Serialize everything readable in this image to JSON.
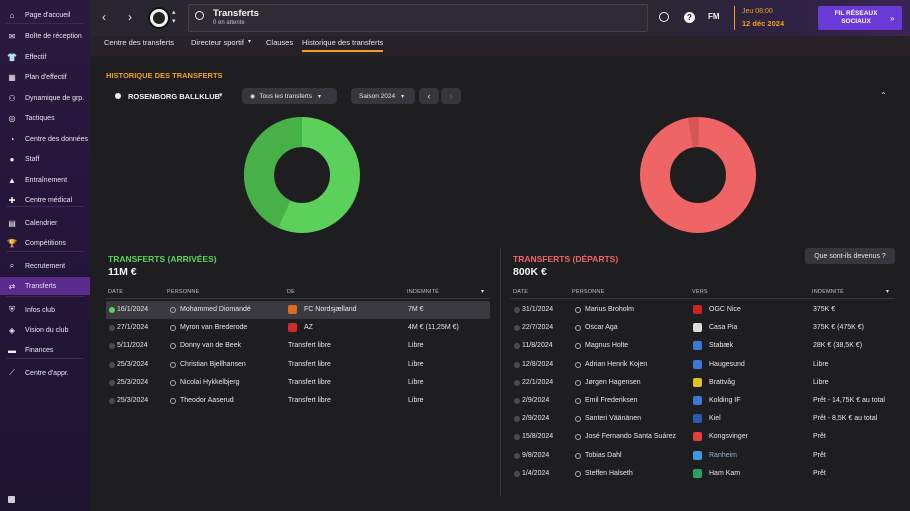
{
  "sidebar": {
    "items": [
      {
        "label": "Page d'accueil",
        "icon": "home-icon",
        "glyph": "⌂"
      },
      {
        "label": "Boîte de réception",
        "icon": "inbox-icon",
        "glyph": "✉"
      },
      {
        "label": "Effectif",
        "icon": "shirt-icon",
        "glyph": "👕"
      },
      {
        "label": "Plan d'effectif",
        "icon": "squad-plan-icon",
        "glyph": "▦"
      },
      {
        "label": "Dynamique de grp.",
        "icon": "dynamics-icon",
        "glyph": "⚇"
      },
      {
        "label": "Tactiques",
        "icon": "tactics-icon",
        "glyph": "◎"
      },
      {
        "label": "Centre des données",
        "icon": "data-icon",
        "glyph": "◔"
      },
      {
        "label": "Staff",
        "icon": "staff-icon",
        "glyph": "●"
      },
      {
        "label": "Entraînement",
        "icon": "training-icon",
        "glyph": "▲"
      },
      {
        "label": "Centre médical",
        "icon": "medical-icon",
        "glyph": "✚"
      },
      {
        "label": "Calendrier",
        "icon": "calendar-icon",
        "glyph": "▤"
      },
      {
        "label": "Compétitions",
        "icon": "trophy-icon",
        "glyph": "🏆"
      },
      {
        "label": "Recrutement",
        "icon": "scouting-icon",
        "glyph": "⌕"
      },
      {
        "label": "Transferts",
        "icon": "transfers-icon",
        "glyph": "⇄"
      },
      {
        "label": "Infos club",
        "icon": "club-info-icon",
        "glyph": "⛨"
      },
      {
        "label": "Vision du club",
        "icon": "club-vision-icon",
        "glyph": "◈"
      },
      {
        "label": "Finances",
        "icon": "finances-icon",
        "glyph": "▬"
      },
      {
        "label": "Centre d'appr.",
        "icon": "dev-centre-icon",
        "glyph": "⟋"
      }
    ],
    "bottom_icon": "grid-icon"
  },
  "topbar": {
    "title": "Transferts",
    "subtitle": "0 en attente",
    "date_day": "Jeu 08:00",
    "date_full": "12 déc 2024",
    "social_btn": "FIL RÉSEAUX SOCIAUX",
    "fm_label": "FM"
  },
  "tabs": [
    "Centre des transferts",
    "Directeur sportif",
    "Clauses",
    "Historique des transferts"
  ],
  "section_title": "HISTORIQUE DES TRANSFERTS",
  "club_name": "ROSENBORG BALLKLUB",
  "filter_all": "Tous les transferts",
  "season": "Saison 2024",
  "whereabouts_btn": "Que sont-ils devenus ?",
  "colors": {
    "in_green": "#5bd15b",
    "in_green_dark": "#47b047",
    "out_red": "#ef6464",
    "out_red_dark": "#d65555",
    "accent_orange": "#f0a020",
    "sidebar_active": "#5a2a8c"
  },
  "arrivals": {
    "title": "TRANSFERTS (ARRIVÉES)",
    "total": "11M €",
    "headers": [
      "DATE",
      "PERSONNE",
      "DE",
      "INDEMNITÉ"
    ],
    "rows": [
      {
        "date": "16/1/2024",
        "person": "Mohammed Diomandé",
        "club": "FC Nordsjælland",
        "fee": "7M €",
        "badge": "#e06a1a"
      },
      {
        "date": "27/1/2024",
        "person": "Myron van Brederode",
        "club": "AZ",
        "fee": "4M € (11,25M €)",
        "badge": "#d42a2a"
      },
      {
        "date": "5/11/2024",
        "person": "Donny van de Beek",
        "club": "Transfert libre",
        "fee": "Libre",
        "badge": ""
      },
      {
        "date": "25/3/2024",
        "person": "Christian Bjellhansen",
        "club": "Transfert libre",
        "fee": "Libre",
        "badge": ""
      },
      {
        "date": "25/3/2024",
        "person": "Nicolai Hykkelbjerg",
        "club": "Transfert libre",
        "fee": "Libre",
        "badge": ""
      },
      {
        "date": "25/3/2024",
        "person": "Theodor Aaserud",
        "club": "Transfert libre",
        "fee": "Libre",
        "badge": ""
      }
    ]
  },
  "departures": {
    "title": "TRANSFERTS (DÉPARTS)",
    "total": "800K €",
    "headers": [
      "DATE",
      "PERSONNE",
      "VERS",
      "INDEMNITÉ"
    ],
    "rows": [
      {
        "date": "31/1/2024",
        "person": "Marius Broholm",
        "club": "OGC Nice",
        "fee": "375K €",
        "badge": "#c22"
      },
      {
        "date": "22/7/2024",
        "person": "Oscar Aga",
        "club": "Casa Pia",
        "fee": "375K € (475K €)",
        "badge": "#ddd"
      },
      {
        "date": "11/8/2024",
        "person": "Magnus Holte",
        "club": "Stabæk",
        "fee": "28K € (38,5K €)",
        "badge": "#3a7ad6"
      },
      {
        "date": "12/8/2024",
        "person": "Adrian Henrik Kojen",
        "club": "Haugesund",
        "fee": "Libre",
        "badge": "#3a7ad6"
      },
      {
        "date": "22/1/2024",
        "person": "Jørgen Hagensen",
        "club": "Brattvåg",
        "fee": "Libre",
        "badge": "#e0c020"
      },
      {
        "date": "2/9/2024",
        "person": "Emil Frederiksen",
        "club": "Kolding IF",
        "fee": "Prêt - 14,75K € au total",
        "badge": "#3a7ad6"
      },
      {
        "date": "2/9/2024",
        "person": "Santeri Väänänen",
        "club": "Kiel",
        "fee": "Prêt - 8,5K € au total",
        "badge": "#2a5ab0"
      },
      {
        "date": "15/8/2024",
        "person": "José Fernando Santa Suárez",
        "club": "Kongsvinger",
        "fee": "Prêt",
        "badge": "#e04040"
      },
      {
        "date": "9/8/2024",
        "person": "Tobias Dahl",
        "club": "Ranheim",
        "fee": "Prêt",
        "badge": "#3a9ae0"
      },
      {
        "date": "1/4/2024",
        "person": "Steffen Halseth",
        "club": "Ham Kam",
        "fee": "Prêt",
        "badge": "#2aa060"
      }
    ]
  }
}
